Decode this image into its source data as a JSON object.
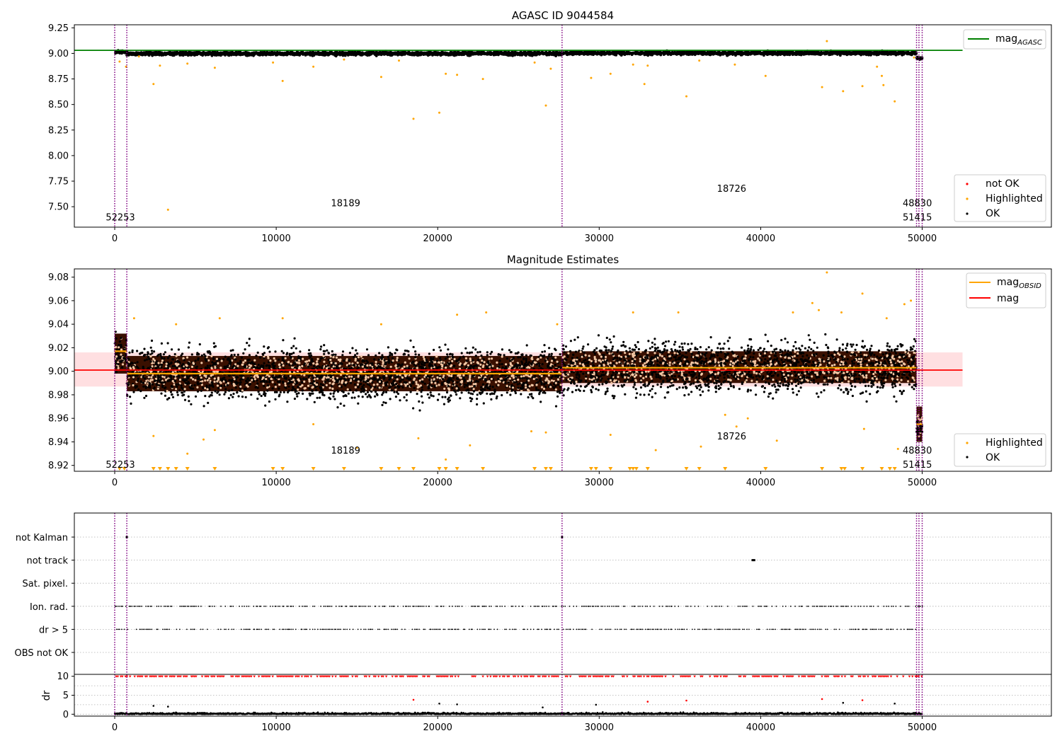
{
  "colors": {
    "ok": "#000000",
    "highlighted": "#ffa500",
    "not_ok": "#ff0000",
    "agasc_line": "#008000",
    "obsid_line": "#ffa500",
    "mag_line": "#ff0000",
    "mag_band": "#ffdfe1",
    "obsid_band": "#3a1000",
    "obsid_vline": "#800080",
    "grid": "#b0b0b0"
  },
  "chart_data": [
    {
      "type": "scatter",
      "title": "AGASC ID 9044584",
      "xlim": [
        -2500,
        58000
      ],
      "ylim": [
        7.3,
        9.28
      ],
      "x_ticks": [
        0,
        10000,
        20000,
        30000,
        40000,
        50000
      ],
      "x_tick_labels": [
        "0",
        "10000",
        "20000",
        "30000",
        "40000",
        "50000"
      ],
      "y_ticks": [
        7.5,
        7.75,
        8.0,
        8.25,
        8.5,
        8.75,
        9.0,
        9.25
      ],
      "y_tick_labels": [
        "7.50",
        "7.75",
        "8.00",
        "8.25",
        "8.50",
        "8.75",
        "9.00",
        "9.25"
      ],
      "mag_agasc": {
        "label": "mag_AGASC",
        "legend_main": "mag",
        "legend_sub": "AGASC",
        "value": 9.03,
        "x_range": [
          -2500,
          52500
        ]
      },
      "legend_lines": [
        "mag_AGASC"
      ],
      "legend_points": [
        "not OK",
        "Highlighted",
        "OK"
      ],
      "obsid_boundaries": [
        0,
        750,
        27700,
        49650,
        49800,
        50000
      ],
      "obsid_labels": [
        {
          "text": "52253",
          "x": 350,
          "y": 7.4
        },
        {
          "text": "18189",
          "x": 14300,
          "y": 7.54
        },
        {
          "text": "18726",
          "x": 38200,
          "y": 7.68
        },
        {
          "text": "48830",
          "x": 49700,
          "y": 7.54
        },
        {
          "text": "51415",
          "x": 49700,
          "y": 7.4
        }
      ],
      "segments": [
        {
          "x": [
            0,
            750
          ],
          "center": 9.015,
          "spread": 0.02
        },
        {
          "x": [
            750,
            27700
          ],
          "center": 8.998,
          "spread": 0.025
        },
        {
          "x": [
            27700,
            49650
          ],
          "center": 9.003,
          "spread": 0.025
        },
        {
          "x": [
            49650,
            50000
          ],
          "center": 8.955,
          "spread": 0.02
        }
      ],
      "highlighted_points": [
        [
          300,
          8.92
        ],
        [
          700,
          8.87
        ],
        [
          1500,
          8.97
        ],
        [
          2400,
          8.7
        ],
        [
          2800,
          8.88
        ],
        [
          3300,
          7.47
        ],
        [
          4500,
          8.9
        ],
        [
          6200,
          8.86
        ],
        [
          9800,
          8.91
        ],
        [
          10400,
          8.73
        ],
        [
          12300,
          8.87
        ],
        [
          14200,
          8.94
        ],
        [
          16500,
          8.77
        ],
        [
          17600,
          8.93
        ],
        [
          18500,
          8.36
        ],
        [
          20100,
          8.42
        ],
        [
          20500,
          8.8
        ],
        [
          21200,
          8.79
        ],
        [
          22800,
          8.75
        ],
        [
          26000,
          8.91
        ],
        [
          26700,
          8.49
        ],
        [
          27000,
          8.85
        ],
        [
          29500,
          8.76
        ],
        [
          30700,
          8.8
        ],
        [
          32100,
          8.89
        ],
        [
          32800,
          8.7
        ],
        [
          33000,
          8.88
        ],
        [
          35400,
          8.58
        ],
        [
          36200,
          8.93
        ],
        [
          38400,
          8.89
        ],
        [
          40300,
          8.78
        ],
        [
          43800,
          8.67
        ],
        [
          44100,
          9.12
        ],
        [
          45100,
          8.63
        ],
        [
          46300,
          8.68
        ],
        [
          47200,
          8.87
        ],
        [
          47500,
          8.78
        ],
        [
          47600,
          8.69
        ],
        [
          48300,
          8.53
        ],
        [
          49500,
          8.96
        ]
      ]
    },
    {
      "type": "scatter",
      "title": "Magnitude Estimates",
      "xlim": [
        -2500,
        58000
      ],
      "ylim": [
        8.915,
        9.087
      ],
      "x_ticks": [
        0,
        10000,
        20000,
        30000,
        40000,
        50000
      ],
      "x_tick_labels": [
        "0",
        "10000",
        "20000",
        "30000",
        "40000",
        "50000"
      ],
      "y_ticks": [
        8.92,
        8.94,
        8.96,
        8.98,
        9.0,
        9.02,
        9.04,
        9.06,
        9.08
      ],
      "y_tick_labels": [
        "8.92",
        "8.94",
        "8.96",
        "8.98",
        "9.00",
        "9.02",
        "9.04",
        "9.06",
        "9.08"
      ],
      "mag": {
        "label": "mag",
        "value": 9.001,
        "band": [
          8.987,
          9.016
        ],
        "x_range": [
          -2500,
          52500
        ]
      },
      "mag_obsid": {
        "label": "mag_OBSID",
        "legend_main": "mag",
        "legend_sub": "OBSID",
        "segments": [
          {
            "x": [
              0,
              750
            ],
            "value": 9.017
          },
          {
            "x": [
              750,
              27700
            ],
            "value": 8.998
          },
          {
            "x": [
              27700,
              49650
            ],
            "value": 9.003
          },
          {
            "x": [
              49650,
              50000
            ],
            "value": 8.955
          }
        ]
      },
      "legend_lines": [
        "mag_OBSID",
        "mag"
      ],
      "legend_points": [
        "Highlighted",
        "OK"
      ],
      "obsid_boundaries": [
        0,
        750,
        27700,
        49650,
        49800,
        50000
      ],
      "obsid_labels": [
        {
          "text": "52253",
          "x": 350,
          "y": 8.921
        },
        {
          "text": "18189",
          "x": 14300,
          "y": 8.933
        },
        {
          "text": "18726",
          "x": 38200,
          "y": 8.945
        },
        {
          "text": "48830",
          "x": 49700,
          "y": 8.933
        },
        {
          "text": "51415",
          "x": 49700,
          "y": 8.921
        }
      ],
      "segments": [
        {
          "x": [
            0,
            750
          ],
          "center": 9.015,
          "spread": 0.02,
          "band": [
            8.998,
            9.032
          ]
        },
        {
          "x": [
            750,
            27700
          ],
          "center": 8.998,
          "spread": 0.025,
          "band": [
            8.983,
            9.013
          ]
        },
        {
          "x": [
            27700,
            49650
          ],
          "center": 9.003,
          "spread": 0.025,
          "band": [
            8.99,
            9.017
          ]
        },
        {
          "x": [
            49650,
            50000
          ],
          "center": 8.955,
          "spread": 0.012,
          "band": [
            8.94,
            8.97
          ]
        }
      ],
      "highlighted_points": [
        [
          1200,
          9.045
        ],
        [
          2400,
          8.945
        ],
        [
          3800,
          9.04
        ],
        [
          4500,
          8.93
        ],
        [
          5500,
          8.942
        ],
        [
          6200,
          8.95
        ],
        [
          6500,
          9.045
        ],
        [
          10400,
          9.045
        ],
        [
          12300,
          8.955
        ],
        [
          15000,
          8.935
        ],
        [
          16500,
          9.04
        ],
        [
          18800,
          8.943
        ],
        [
          20500,
          8.925
        ],
        [
          21200,
          9.048
        ],
        [
          22000,
          8.937
        ],
        [
          23000,
          9.05
        ],
        [
          25800,
          8.949
        ],
        [
          26700,
          8.948
        ],
        [
          27400,
          9.04
        ],
        [
          30700,
          8.946
        ],
        [
          32100,
          9.05
        ],
        [
          33500,
          8.933
        ],
        [
          34900,
          9.05
        ],
        [
          36300,
          8.936
        ],
        [
          37800,
          8.963
        ],
        [
          38500,
          8.953
        ],
        [
          39200,
          8.96
        ],
        [
          41000,
          8.941
        ],
        [
          42000,
          9.05
        ],
        [
          43200,
          9.058
        ],
        [
          43600,
          9.052
        ],
        [
          44100,
          9.084
        ],
        [
          45000,
          9.05
        ],
        [
          46300,
          9.066
        ],
        [
          46400,
          8.951
        ],
        [
          47800,
          9.045
        ],
        [
          48900,
          9.057
        ],
        [
          49300,
          9.06
        ],
        [
          48500,
          8.934
        ]
      ],
      "clipped_markers_x": [
        300,
        600,
        2400,
        2800,
        3300,
        3800,
        4500,
        6200,
        9800,
        10400,
        12300,
        14200,
        16500,
        17600,
        18500,
        20100,
        20500,
        21200,
        22800,
        26000,
        26700,
        27000,
        29500,
        29800,
        30700,
        31900,
        32100,
        32300,
        33000,
        35400,
        36200,
        37800,
        40300,
        43800,
        45000,
        45200,
        46300,
        47500,
        48000,
        48300
      ]
    },
    {
      "type": "scatter",
      "title": "",
      "xlim": [
        -2500,
        58000
      ],
      "flag_rows": [
        "not Kalman",
        "not track",
        "Sat. pixel.",
        "Ion. rad.",
        "dr > 5",
        "OBS not OK"
      ],
      "flags": {
        "not Kalman": {
          "points": [
            750,
            27700
          ]
        },
        "not track": {
          "points": [
            39500,
            39600
          ]
        },
        "Sat. pixel.": {
          "points": []
        },
        "Ion. rad.": {
          "density": "frequent"
        },
        "dr > 5": {
          "density": "frequent"
        },
        "OBS not OK": {
          "points": []
        }
      },
      "obsid_boundaries": [
        0,
        750,
        27700,
        49650,
        49800,
        50000
      ]
    },
    {
      "type": "scatter",
      "title": "",
      "ylabel": "dr",
      "xlim": [
        -2500,
        58000
      ],
      "ylim": [
        -0.5,
        10.5
      ],
      "x_ticks": [
        0,
        10000,
        20000,
        30000,
        40000,
        50000
      ],
      "x_tick_labels": [
        "0",
        "10000",
        "20000",
        "30000",
        "40000",
        "50000"
      ],
      "y_ticks": [
        0,
        5,
        10
      ],
      "y_tick_labels": [
        "0",
        "5",
        "10"
      ],
      "clip_value": 10,
      "outliers": [
        [
          2400,
          2.2
        ],
        [
          3300,
          2.0
        ],
        [
          18500,
          3.8
        ],
        [
          20100,
          2.8
        ],
        [
          21200,
          2.6
        ],
        [
          26500,
          1.8
        ],
        [
          29800,
          2.5
        ],
        [
          33000,
          3.3
        ],
        [
          35400,
          3.6
        ],
        [
          43800,
          4.0
        ],
        [
          45100,
          3.0
        ],
        [
          46300,
          3.7
        ],
        [
          48300,
          2.8
        ]
      ],
      "obsid_boundaries": [
        0,
        750,
        27700,
        49650,
        49800,
        50000
      ]
    }
  ]
}
